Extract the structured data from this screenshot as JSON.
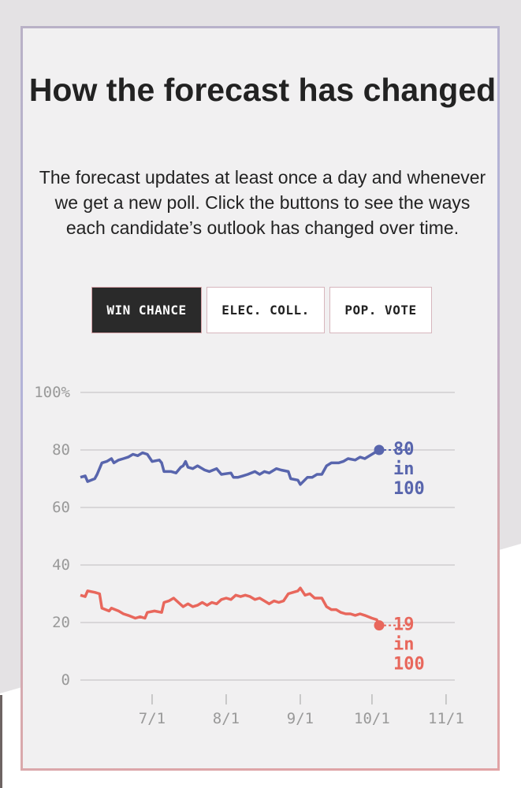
{
  "title": "How the forecast has changed",
  "description": "The forecast updates at least once a day and whenever we get a new poll. Click the buttons to see the ways each candidate’s outlook has changed over time.",
  "tabs": [
    {
      "label": "WIN CHANCE",
      "active": true
    },
    {
      "label": "ELEC. COLL.",
      "active": false
    },
    {
      "label": "POP. VOTE",
      "active": false
    }
  ],
  "chart_data": {
    "type": "line",
    "y_tick_labels": [
      "100%",
      "80",
      "60",
      "40",
      "20",
      "0"
    ],
    "y_ticks": [
      100,
      80,
      60,
      40,
      20,
      0
    ],
    "ylim": [
      0,
      100
    ],
    "x_tick_labels": [
      "7/1",
      "8/1",
      "9/1",
      "10/1",
      "11/1"
    ],
    "x_ticks": [
      "2020-07-01",
      "2020-08-01",
      "2020-09-01",
      "2020-10-01",
      "2020-11-01"
    ],
    "x_range": [
      "2020-06-01",
      "2020-11-03"
    ],
    "grid": true,
    "series": [
      {
        "color": "#5865ad",
        "end_label": [
          "80",
          "in",
          "100"
        ],
        "points": [
          [
            "2020-06-01",
            70.5
          ],
          [
            "2020-06-03",
            71
          ],
          [
            "2020-06-04",
            69
          ],
          [
            "2020-06-07",
            70
          ],
          [
            "2020-06-08",
            71.5
          ],
          [
            "2020-06-10",
            75.5
          ],
          [
            "2020-06-12",
            76
          ],
          [
            "2020-06-14",
            77
          ],
          [
            "2020-06-15",
            75.5
          ],
          [
            "2020-06-17",
            76.5
          ],
          [
            "2020-06-19",
            77
          ],
          [
            "2020-06-21",
            77.5
          ],
          [
            "2020-06-23",
            78.5
          ],
          [
            "2020-06-25",
            78
          ],
          [
            "2020-06-27",
            79
          ],
          [
            "2020-06-29",
            78.5
          ],
          [
            "2020-07-01",
            76
          ],
          [
            "2020-07-04",
            76.5
          ],
          [
            "2020-07-05",
            75.5
          ],
          [
            "2020-07-06",
            72.5
          ],
          [
            "2020-07-09",
            72.5
          ],
          [
            "2020-07-11",
            72
          ],
          [
            "2020-07-13",
            74
          ],
          [
            "2020-07-14",
            74.5
          ],
          [
            "2020-07-15",
            76
          ],
          [
            "2020-07-16",
            74
          ],
          [
            "2020-07-18",
            73.5
          ],
          [
            "2020-07-20",
            74.5
          ],
          [
            "2020-07-23",
            73
          ],
          [
            "2020-07-25",
            72.5
          ],
          [
            "2020-07-28",
            73.5
          ],
          [
            "2020-07-30",
            71.5
          ],
          [
            "2020-08-03",
            72
          ],
          [
            "2020-08-04",
            70.5
          ],
          [
            "2020-08-06",
            70.5
          ],
          [
            "2020-08-08",
            71
          ],
          [
            "2020-08-10",
            71.5
          ],
          [
            "2020-08-13",
            72.5
          ],
          [
            "2020-08-15",
            71.5
          ],
          [
            "2020-08-17",
            72.5
          ],
          [
            "2020-08-19",
            72
          ],
          [
            "2020-08-22",
            73.5
          ],
          [
            "2020-08-24",
            73
          ],
          [
            "2020-08-27",
            72.5
          ],
          [
            "2020-08-28",
            70
          ],
          [
            "2020-08-31",
            69.5
          ],
          [
            "2020-09-01",
            68
          ],
          [
            "2020-09-04",
            70.5
          ],
          [
            "2020-09-06",
            70.5
          ],
          [
            "2020-09-08",
            71.5
          ],
          [
            "2020-09-10",
            71.5
          ],
          [
            "2020-09-12",
            74.5
          ],
          [
            "2020-09-14",
            75.5
          ],
          [
            "2020-09-17",
            75.5
          ],
          [
            "2020-09-19",
            76
          ],
          [
            "2020-09-21",
            77
          ],
          [
            "2020-09-24",
            76.5
          ],
          [
            "2020-09-26",
            77.5
          ],
          [
            "2020-09-28",
            77
          ],
          [
            "2020-10-01",
            78.5
          ],
          [
            "2020-10-02",
            79
          ],
          [
            "2020-10-04",
            80
          ]
        ]
      },
      {
        "color": "#e8675c",
        "end_label": [
          "19",
          "in",
          "100"
        ],
        "points": [
          [
            "2020-06-01",
            29.5
          ],
          [
            "2020-06-03",
            29
          ],
          [
            "2020-06-04",
            31
          ],
          [
            "2020-06-07",
            30.5
          ],
          [
            "2020-06-09",
            30
          ],
          [
            "2020-06-10",
            25
          ],
          [
            "2020-06-13",
            24
          ],
          [
            "2020-06-14",
            25
          ],
          [
            "2020-06-17",
            24
          ],
          [
            "2020-06-19",
            23
          ],
          [
            "2020-06-21",
            22.5
          ],
          [
            "2020-06-24",
            21.5
          ],
          [
            "2020-06-26",
            22
          ],
          [
            "2020-06-28",
            21.5
          ],
          [
            "2020-06-29",
            23.5
          ],
          [
            "2020-07-02",
            24
          ],
          [
            "2020-07-05",
            23.5
          ],
          [
            "2020-07-06",
            27
          ],
          [
            "2020-07-08",
            27.5
          ],
          [
            "2020-07-10",
            28.5
          ],
          [
            "2020-07-12",
            27
          ],
          [
            "2020-07-14",
            25.5
          ],
          [
            "2020-07-16",
            26.5
          ],
          [
            "2020-07-18",
            25.5
          ],
          [
            "2020-07-20",
            26
          ],
          [
            "2020-07-22",
            27
          ],
          [
            "2020-07-24",
            26
          ],
          [
            "2020-07-26",
            27
          ],
          [
            "2020-07-28",
            26.5
          ],
          [
            "2020-07-30",
            28
          ],
          [
            "2020-08-01",
            28.5
          ],
          [
            "2020-08-03",
            28
          ],
          [
            "2020-08-05",
            29.5
          ],
          [
            "2020-08-07",
            29
          ],
          [
            "2020-08-09",
            29.5
          ],
          [
            "2020-08-11",
            29
          ],
          [
            "2020-08-13",
            28
          ],
          [
            "2020-08-15",
            28.5
          ],
          [
            "2020-08-17",
            27.5
          ],
          [
            "2020-08-19",
            26.5
          ],
          [
            "2020-08-21",
            27.5
          ],
          [
            "2020-08-23",
            27
          ],
          [
            "2020-08-25",
            27.5
          ],
          [
            "2020-08-27",
            30
          ],
          [
            "2020-08-29",
            30.5
          ],
          [
            "2020-08-31",
            31
          ],
          [
            "2020-09-01",
            32
          ],
          [
            "2020-09-03",
            29.5
          ],
          [
            "2020-09-05",
            30
          ],
          [
            "2020-09-07",
            28.5
          ],
          [
            "2020-09-10",
            28.5
          ],
          [
            "2020-09-12",
            25.5
          ],
          [
            "2020-09-14",
            24.5
          ],
          [
            "2020-09-16",
            24.5
          ],
          [
            "2020-09-18",
            23.5
          ],
          [
            "2020-09-20",
            23
          ],
          [
            "2020-09-22",
            23
          ],
          [
            "2020-09-24",
            22.5
          ],
          [
            "2020-09-26",
            23
          ],
          [
            "2020-09-28",
            22.5
          ],
          [
            "2020-10-01",
            21.5
          ],
          [
            "2020-10-03",
            21
          ],
          [
            "2020-10-04",
            19
          ]
        ]
      }
    ]
  }
}
